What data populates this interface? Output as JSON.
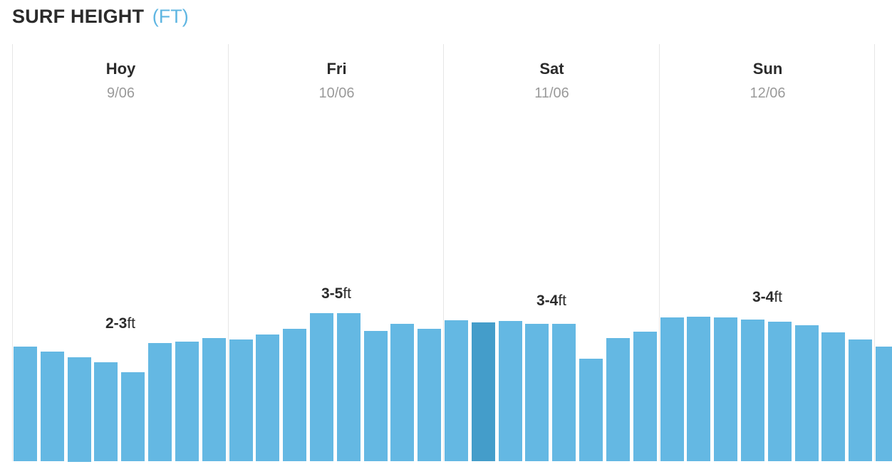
{
  "header": {
    "title": "SURF HEIGHT",
    "unit": "(FT)"
  },
  "colors": {
    "bar": "#64b8e3",
    "bar_current": "#449dca",
    "unit_accent": "#5fb6e2",
    "divider": "#e6e6e6"
  },
  "chart_data": {
    "type": "bar",
    "title": "SURF HEIGHT",
    "ylabel": "(FT)",
    "ylim": [
      0,
      12
    ],
    "grid": false,
    "days": [
      {
        "name": "Hoy",
        "date": "9/06",
        "range_min": "2",
        "range_max": "3",
        "range_unit": "ft",
        "values": [
          3.3,
          3.15,
          3.0,
          2.85,
          2.55,
          3.4,
          3.45,
          3.55
        ]
      },
      {
        "name": "Fri",
        "date": "10/06",
        "range_min": "3",
        "range_max": "5",
        "range_unit": "ft",
        "values": [
          3.5,
          3.65,
          3.8,
          4.25,
          4.25,
          3.75,
          3.95,
          3.8
        ]
      },
      {
        "name": "Sat",
        "date": "11/06",
        "range_min": "3",
        "range_max": "4",
        "range_unit": "ft",
        "current_index": 1,
        "values": [
          4.05,
          4.0,
          4.03,
          3.95,
          3.95,
          2.95,
          3.55,
          3.72
        ]
      },
      {
        "name": "Sun",
        "date": "12/06",
        "range_min": "3",
        "range_max": "4",
        "range_unit": "ft",
        "values": [
          4.13,
          4.16,
          4.13,
          4.07,
          4.02,
          3.92,
          3.7,
          3.5
        ]
      }
    ],
    "trailing_values": [
      3.3
    ]
  }
}
